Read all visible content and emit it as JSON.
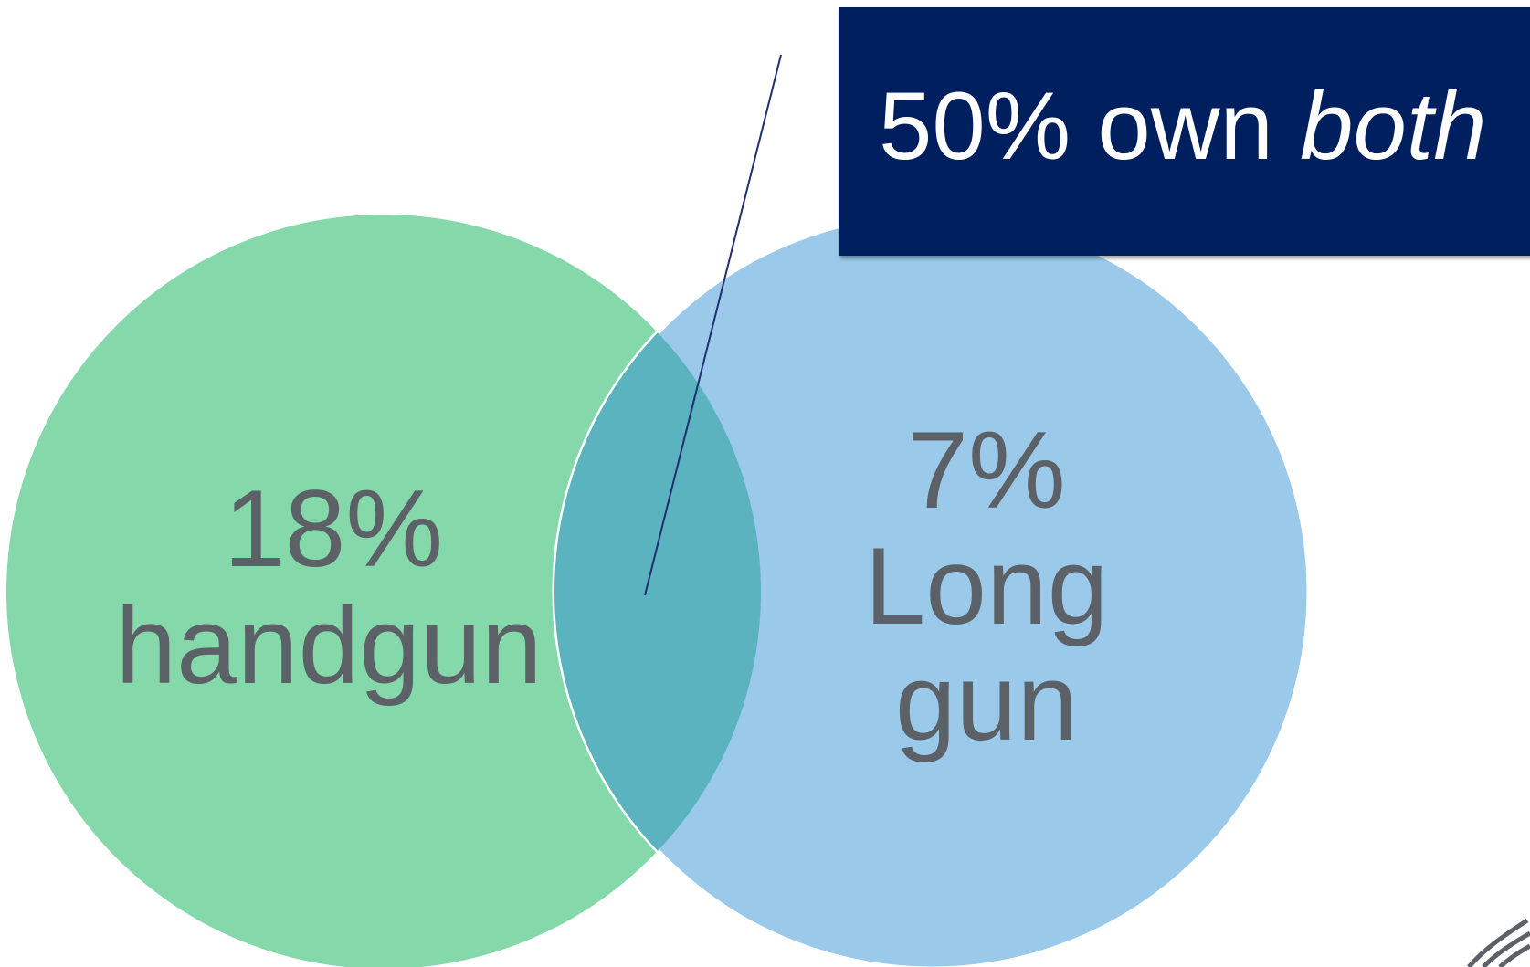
{
  "diagram": {
    "type": "venn",
    "sets": [
      {
        "id": "handgun",
        "value": "18%",
        "label": "handgun",
        "color": "#84d8a9"
      },
      {
        "id": "long-gun",
        "value": "7%",
        "label_lines": [
          "Long",
          "gun"
        ],
        "color": "#9bc9ea"
      }
    ],
    "overlap": {
      "color": "#5ab3bf"
    },
    "callout": {
      "text_prefix": "50% own ",
      "text_emphasis": "both",
      "background": "#001f5f",
      "text_color": "#ffffff"
    },
    "text_color": "#5b6166",
    "leader_line_color": "#1f2f6f"
  }
}
